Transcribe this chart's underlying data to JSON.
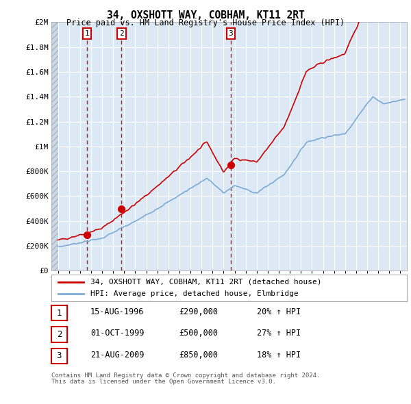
{
  "title": "34, OXSHOTT WAY, COBHAM, KT11 2RT",
  "subtitle": "Price paid vs. HM Land Registry's House Price Index (HPI)",
  "ylabel_ticks": [
    "£0",
    "£200K",
    "£400K",
    "£600K",
    "£800K",
    "£1M",
    "£1.2M",
    "£1.4M",
    "£1.6M",
    "£1.8M",
    "£2M"
  ],
  "ytick_values": [
    0,
    200000,
    400000,
    600000,
    800000,
    1000000,
    1200000,
    1400000,
    1600000,
    1800000,
    2000000
  ],
  "ylim": [
    0,
    2000000
  ],
  "xlim_start": 1993.4,
  "xlim_end": 2025.6,
  "data_start": 1994.0,
  "background_color": "#dce9f5",
  "hatch_color": "#c4d4e4",
  "grid_color": "#ffffff",
  "sale_color": "#cc0000",
  "hpi_color": "#7baad4",
  "dashed_line_color": "#cc0000",
  "transactions": [
    {
      "label": "1",
      "date_num": 1996.625,
      "price": 290000,
      "pct": "20%",
      "date_str": "15-AUG-1996"
    },
    {
      "label": "2",
      "date_num": 1999.75,
      "price": 500000,
      "pct": "27%",
      "date_str": "01-OCT-1999"
    },
    {
      "label": "3",
      "date_num": 2009.64,
      "price": 850000,
      "pct": "18%",
      "date_str": "21-AUG-2009"
    }
  ],
  "legend_line1": "34, OXSHOTT WAY, COBHAM, KT11 2RT (detached house)",
  "legend_line2": "HPI: Average price, detached house, Elmbridge",
  "footer1": "Contains HM Land Registry data © Crown copyright and database right 2024.",
  "footer2": "This data is licensed under the Open Government Licence v3.0."
}
